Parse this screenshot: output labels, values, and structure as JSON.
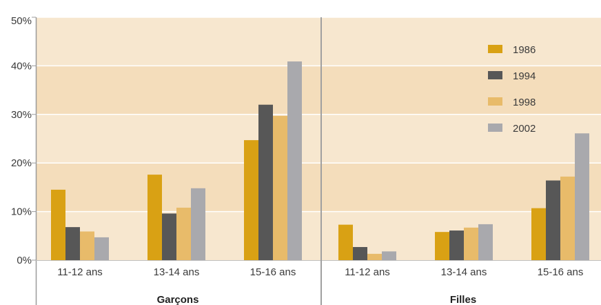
{
  "chart_data": {
    "type": "bar",
    "groups": [
      "Garçons",
      "Filles"
    ],
    "categories": [
      "11-12 ans",
      "13-14 ans",
      "15-16 ans"
    ],
    "y_ticks": [
      "0%",
      "10%",
      "20%",
      "30%",
      "40%",
      "50%"
    ],
    "ylim": [
      0,
      50
    ],
    "y_unit": "%",
    "legend_position": "top-right",
    "series": [
      {
        "name": "1986",
        "color": "#d9a114",
        "garcons": [
          14.5,
          17.6,
          24.7
        ],
        "filles": [
          7.3,
          5.8,
          10.7
        ]
      },
      {
        "name": "1994",
        "color": "#575757",
        "garcons": [
          6.8,
          9.6,
          32.0
        ],
        "filles": [
          2.7,
          6.1,
          16.4
        ]
      },
      {
        "name": "1998",
        "color": "#e8bb6a",
        "garcons": [
          5.9,
          10.8,
          29.7
        ],
        "filles": [
          1.3,
          6.7,
          17.2
        ]
      },
      {
        "name": "2002",
        "color": "#a9a9ad",
        "garcons": [
          4.7,
          14.8,
          40.9
        ],
        "filles": [
          1.8,
          7.4,
          26.1
        ]
      }
    ],
    "band_colors": [
      "#f7e7cf",
      "#f4ddbb"
    ]
  }
}
